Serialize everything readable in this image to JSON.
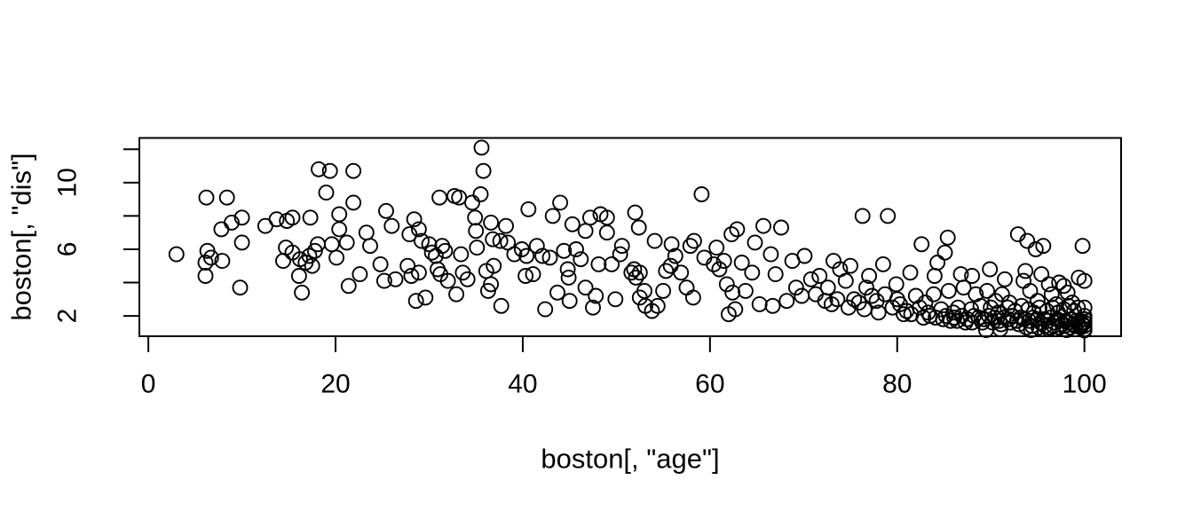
{
  "figure": {
    "background": "#ffffff",
    "foreground": "#000000"
  },
  "chart_data": {
    "type": "scatter",
    "title": "",
    "xlabel": "boston[, \"age\"]",
    "ylabel": "boston[, \"dis\"]",
    "x_axis": {
      "range": [
        -0.96,
        103.92
      ],
      "ticks": [
        0,
        20,
        40,
        60,
        80,
        100
      ],
      "tick_labels": [
        "0",
        "20",
        "40",
        "60",
        "80",
        "100"
      ]
    },
    "y_axis": {
      "range": [
        0.78,
        12.68
      ],
      "ticks": [
        2,
        4,
        6,
        8,
        10,
        12
      ],
      "tick_labels": [
        "2",
        "",
        "6",
        "",
        "10",
        ""
      ]
    },
    "grid": false,
    "legend": null,
    "marker": {
      "shape": "open-circle",
      "radius_px": 8,
      "stroke": "#000000",
      "stroke_width": 1.9,
      "fill": "none"
    },
    "points": [
      [
        3.0,
        5.7
      ],
      [
        6.2,
        9.1
      ],
      [
        8.4,
        9.1
      ],
      [
        6.3,
        5.9
      ],
      [
        6.7,
        5.5
      ],
      [
        6.1,
        5.2
      ],
      [
        7.9,
        5.3
      ],
      [
        6.1,
        4.4
      ],
      [
        7.8,
        7.2
      ],
      [
        8.9,
        7.6
      ],
      [
        10.0,
        7.9
      ],
      [
        10.0,
        6.4
      ],
      [
        9.8,
        3.7
      ],
      [
        12.5,
        7.4
      ],
      [
        13.7,
        7.8
      ],
      [
        14.8,
        7.7
      ],
      [
        15.4,
        7.9
      ],
      [
        17.3,
        7.9
      ],
      [
        18.2,
        10.8
      ],
      [
        19.4,
        10.7
      ],
      [
        21.9,
        10.7
      ],
      [
        19.0,
        9.4
      ],
      [
        21.9,
        8.8
      ],
      [
        20.4,
        8.1
      ],
      [
        20.4,
        7.2
      ],
      [
        21.2,
        6.4
      ],
      [
        19.6,
        6.3
      ],
      [
        18.1,
        6.3
      ],
      [
        17.8,
        5.9
      ],
      [
        17.2,
        5.6
      ],
      [
        16.8,
        5.2
      ],
      [
        17.5,
        5.0
      ],
      [
        16.2,
        5.4
      ],
      [
        15.4,
        5.8
      ],
      [
        14.7,
        6.1
      ],
      [
        14.4,
        5.3
      ],
      [
        16.1,
        4.4
      ],
      [
        16.4,
        3.4
      ],
      [
        20.1,
        5.5
      ],
      [
        21.4,
        3.8
      ],
      [
        22.6,
        4.5
      ],
      [
        23.3,
        7.0
      ],
      [
        23.7,
        6.2
      ],
      [
        24.8,
        5.1
      ],
      [
        25.4,
        8.3
      ],
      [
        26.0,
        7.4
      ],
      [
        28.4,
        7.8
      ],
      [
        28.9,
        7.2
      ],
      [
        27.9,
        6.9
      ],
      [
        31.1,
        9.1
      ],
      [
        32.7,
        9.2
      ],
      [
        33.2,
        9.1
      ],
      [
        34.6,
        8.8
      ],
      [
        34.9,
        7.9
      ],
      [
        29.2,
        6.5
      ],
      [
        30.0,
        6.3
      ],
      [
        30.3,
        5.8
      ],
      [
        30.7,
        5.6
      ],
      [
        31.4,
        6.2
      ],
      [
        31.7,
        5.9
      ],
      [
        30.9,
        4.8
      ],
      [
        31.2,
        4.5
      ],
      [
        32.0,
        4.1
      ],
      [
        28.9,
        4.6
      ],
      [
        28.1,
        4.4
      ],
      [
        27.7,
        5.0
      ],
      [
        26.4,
        4.2
      ],
      [
        25.2,
        4.1
      ],
      [
        32.9,
        3.3
      ],
      [
        33.4,
        5.7
      ],
      [
        33.6,
        4.6
      ],
      [
        34.1,
        4.2
      ],
      [
        29.6,
        3.1
      ],
      [
        28.6,
        2.9
      ],
      [
        35.0,
        7.1
      ],
      [
        35.1,
        6.1
      ],
      [
        35.6,
        12.1
      ],
      [
        35.8,
        10.7
      ],
      [
        35.5,
        9.3
      ],
      [
        40.6,
        8.4
      ],
      [
        44.0,
        8.8
      ],
      [
        43.2,
        8.0
      ],
      [
        36.6,
        7.6
      ],
      [
        38.2,
        7.4
      ],
      [
        36.8,
        6.6
      ],
      [
        38.4,
        6.4
      ],
      [
        37.6,
        6.5
      ],
      [
        39.1,
        5.7
      ],
      [
        39.9,
        6.0
      ],
      [
        40.4,
        5.6
      ],
      [
        41.5,
        6.2
      ],
      [
        42.1,
        5.6
      ],
      [
        42.9,
        5.5
      ],
      [
        36.9,
        5.0
      ],
      [
        36.1,
        4.7
      ],
      [
        36.6,
        3.9
      ],
      [
        36.3,
        3.5
      ],
      [
        37.7,
        2.6
      ],
      [
        42.4,
        2.4
      ],
      [
        45.3,
        7.5
      ],
      [
        47.2,
        7.9
      ],
      [
        48.3,
        8.1
      ],
      [
        49.0,
        7.9
      ],
      [
        46.7,
        7.1
      ],
      [
        49.0,
        7.0
      ],
      [
        45.7,
        6.0
      ],
      [
        46.2,
        5.4
      ],
      [
        44.8,
        4.8
      ],
      [
        44.9,
        4.3
      ],
      [
        46.7,
        3.7
      ],
      [
        47.8,
        3.2
      ],
      [
        48.1,
        5.1
      ],
      [
        49.5,
        5.1
      ],
      [
        52.0,
        8.2
      ],
      [
        52.4,
        7.3
      ],
      [
        54.1,
        6.5
      ],
      [
        50.6,
        6.2
      ],
      [
        51.9,
        4.8
      ],
      [
        51.6,
        4.6
      ],
      [
        52.1,
        4.3
      ],
      [
        52.5,
        4.6
      ],
      [
        53.0,
        3.5
      ],
      [
        52.5,
        3.1
      ],
      [
        53.1,
        2.6
      ],
      [
        53.8,
        2.3
      ],
      [
        54.4,
        2.6
      ],
      [
        55.0,
        3.5
      ],
      [
        55.3,
        4.7
      ],
      [
        55.8,
        5.0
      ],
      [
        56.3,
        5.6
      ],
      [
        56.9,
        4.6
      ],
      [
        57.5,
        3.7
      ],
      [
        58.2,
        3.1
      ],
      [
        59.1,
        9.3
      ],
      [
        57.9,
        6.2
      ],
      [
        58.3,
        6.5
      ],
      [
        59.4,
        5.5
      ],
      [
        60.4,
        5.1
      ],
      [
        61.0,
        4.8
      ],
      [
        61.5,
        5.3
      ],
      [
        62.3,
        6.9
      ],
      [
        62.9,
        7.2
      ],
      [
        64.8,
        6.4
      ],
      [
        64.5,
        4.6
      ],
      [
        61.8,
        3.9
      ],
      [
        62.4,
        3.4
      ],
      [
        62.0,
        2.1
      ],
      [
        62.7,
        2.4
      ],
      [
        63.8,
        3.5
      ],
      [
        65.7,
        7.4
      ],
      [
        67.6,
        7.3
      ],
      [
        66.5,
        5.7
      ],
      [
        65.3,
        2.7
      ],
      [
        66.7,
        2.6
      ],
      [
        68.2,
        2.9
      ],
      [
        69.2,
        3.7
      ],
      [
        69.8,
        3.2
      ],
      [
        70.1,
        5.6
      ],
      [
        70.8,
        4.2
      ],
      [
        71.3,
        3.3
      ],
      [
        45.0,
        2.9
      ],
      [
        47.5,
        2.5
      ],
      [
        49.9,
        3.0
      ],
      [
        43.7,
        3.4
      ],
      [
        41.1,
        4.5
      ],
      [
        40.3,
        4.4
      ],
      [
        44.4,
        5.9
      ],
      [
        50.4,
        5.7
      ],
      [
        55.9,
        6.3
      ],
      [
        60.7,
        6.1
      ],
      [
        63.4,
        5.2
      ],
      [
        67.0,
        4.5
      ],
      [
        68.8,
        5.3
      ],
      [
        76.3,
        8.0
      ],
      [
        79.0,
        8.0
      ],
      [
        82.6,
        6.3
      ],
      [
        85.4,
        6.7
      ],
      [
        85.1,
        5.8
      ],
      [
        92.9,
        6.9
      ],
      [
        93.9,
        6.5
      ],
      [
        94.8,
        6.0
      ],
      [
        95.6,
        6.2
      ],
      [
        99.8,
        6.2
      ],
      [
        73.9,
        4.8
      ],
      [
        71.7,
        4.4
      ],
      [
        78.5,
        5.1
      ],
      [
        84.3,
        5.2
      ],
      [
        89.9,
        4.8
      ],
      [
        93.7,
        4.7
      ],
      [
        96.2,
        3.9
      ],
      [
        97.3,
        4.0
      ],
      [
        99.4,
        4.3
      ],
      [
        100,
        4.1
      ],
      [
        81.4,
        4.6
      ],
      [
        79.9,
        3.9
      ],
      [
        76.7,
        3.7
      ],
      [
        74.5,
        4.1
      ],
      [
        72.6,
        3.7
      ],
      [
        75.4,
        3.0
      ],
      [
        77.3,
        3.2
      ],
      [
        78.7,
        3.3
      ],
      [
        80.3,
        2.7
      ],
      [
        82.0,
        3.2
      ],
      [
        83.9,
        3.3
      ],
      [
        85.5,
        3.5
      ],
      [
        87.1,
        3.7
      ],
      [
        88.4,
        3.3
      ],
      [
        89.6,
        3.5
      ],
      [
        91.2,
        3.3
      ],
      [
        72.3,
        2.9
      ],
      [
        73.6,
        3.0
      ],
      [
        75.9,
        2.8
      ],
      [
        77.8,
        2.9
      ],
      [
        80.0,
        3.0
      ],
      [
        83.0,
        2.8
      ],
      [
        90.5,
        2.9
      ],
      [
        92.0,
        2.8
      ],
      [
        95.0,
        2.9
      ],
      [
        97.0,
        2.7
      ],
      [
        98.7,
        2.8
      ],
      [
        96.5,
        3.3
      ],
      [
        94.2,
        3.5
      ],
      [
        98.2,
        3.4
      ],
      [
        91.5,
        4.2
      ],
      [
        93.5,
        4.1
      ],
      [
        88.0,
        4.4
      ],
      [
        86.8,
        4.5
      ],
      [
        84.0,
        4.4
      ],
      [
        77.0,
        4.4
      ],
      [
        75.0,
        5.0
      ],
      [
        73.2,
        5.3
      ],
      [
        97.8,
        3.8
      ],
      [
        95.4,
        4.5
      ],
      [
        73.0,
        2.7
      ],
      [
        74.8,
        2.5
      ],
      [
        76.5,
        2.4
      ],
      [
        78.0,
        2.2
      ],
      [
        79.5,
        2.5
      ],
      [
        81.0,
        2.3
      ],
      [
        82.4,
        2.5
      ],
      [
        83.3,
        2.2
      ],
      [
        84.7,
        2.4
      ],
      [
        86.0,
        2.2
      ],
      [
        86.5,
        2.5
      ],
      [
        87.9,
        2.4
      ],
      [
        88.9,
        2.6
      ],
      [
        90.0,
        2.5
      ],
      [
        90.8,
        2.2
      ],
      [
        91.8,
        2.5
      ],
      [
        92.6,
        2.3
      ],
      [
        93.3,
        2.6
      ],
      [
        94.0,
        2.4
      ],
      [
        94.6,
        2.2
      ],
      [
        95.2,
        2.5
      ],
      [
        96.0,
        2.3
      ],
      [
        96.6,
        2.5
      ],
      [
        97.2,
        2.2
      ],
      [
        97.8,
        2.4
      ],
      [
        98.3,
        2.6
      ],
      [
        98.9,
        2.3
      ],
      [
        99.3,
        2.5
      ],
      [
        100,
        2.5
      ],
      [
        80.7,
        2.1
      ],
      [
        81.5,
        2.1
      ],
      [
        82.8,
        1.9
      ],
      [
        83.5,
        2.0
      ],
      [
        84.1,
        1.9
      ],
      [
        84.9,
        1.8
      ],
      [
        85.2,
        2.0
      ],
      [
        86.1,
        1.9
      ],
      [
        86.9,
        2.0
      ],
      [
        87.5,
        1.8
      ],
      [
        88.2,
        2.0
      ],
      [
        88.7,
        1.9
      ],
      [
        89.3,
        1.8
      ],
      [
        89.8,
        2.0
      ],
      [
        90.4,
        1.9
      ],
      [
        90.9,
        1.7
      ],
      [
        91.4,
        1.9
      ],
      [
        91.9,
        1.8
      ],
      [
        92.3,
        2.0
      ],
      [
        92.8,
        1.7
      ],
      [
        93.2,
        1.9
      ],
      [
        93.6,
        1.8
      ],
      [
        94.1,
        1.7
      ],
      [
        94.5,
        1.9
      ],
      [
        94.9,
        1.8
      ],
      [
        95.3,
        1.6
      ],
      [
        95.7,
        1.8
      ],
      [
        96.1,
        1.7
      ],
      [
        96.4,
        1.9
      ],
      [
        96.8,
        1.6
      ],
      [
        97.1,
        1.8
      ],
      [
        97.4,
        1.7
      ],
      [
        97.7,
        1.5
      ],
      [
        98.0,
        1.7
      ],
      [
        98.3,
        1.6
      ],
      [
        98.6,
        1.8
      ],
      [
        98.8,
        1.5
      ],
      [
        99.1,
        1.7
      ],
      [
        99.3,
        1.6
      ],
      [
        99.5,
        1.4
      ],
      [
        99.7,
        1.6
      ],
      [
        99.8,
        1.5
      ],
      [
        100,
        1.6
      ],
      [
        100,
        1.4
      ],
      [
        100,
        1.8
      ],
      [
        100,
        2.0
      ],
      [
        100,
        1.2
      ],
      [
        99.6,
        1.3
      ],
      [
        99.0,
        1.4
      ],
      [
        98.5,
        1.3
      ],
      [
        97.9,
        1.4
      ],
      [
        97.3,
        1.3
      ],
      [
        96.7,
        1.4
      ],
      [
        96.3,
        1.3
      ],
      [
        95.8,
        1.4
      ],
      [
        95.1,
        1.3
      ],
      [
        94.4,
        1.4
      ],
      [
        93.8,
        1.3
      ],
      [
        93.0,
        1.5
      ],
      [
        92.1,
        1.6
      ],
      [
        91.1,
        1.5
      ],
      [
        90.2,
        1.6
      ],
      [
        89.1,
        1.6
      ],
      [
        88.0,
        1.6
      ],
      [
        87.3,
        1.6
      ],
      [
        86.4,
        1.7
      ],
      [
        85.7,
        1.7
      ],
      [
        89.5,
        1.15
      ],
      [
        91.0,
        1.2
      ],
      [
        94.3,
        1.15
      ],
      [
        96.2,
        1.2
      ],
      [
        98.1,
        1.15
      ],
      [
        100,
        1.13
      ]
    ]
  }
}
